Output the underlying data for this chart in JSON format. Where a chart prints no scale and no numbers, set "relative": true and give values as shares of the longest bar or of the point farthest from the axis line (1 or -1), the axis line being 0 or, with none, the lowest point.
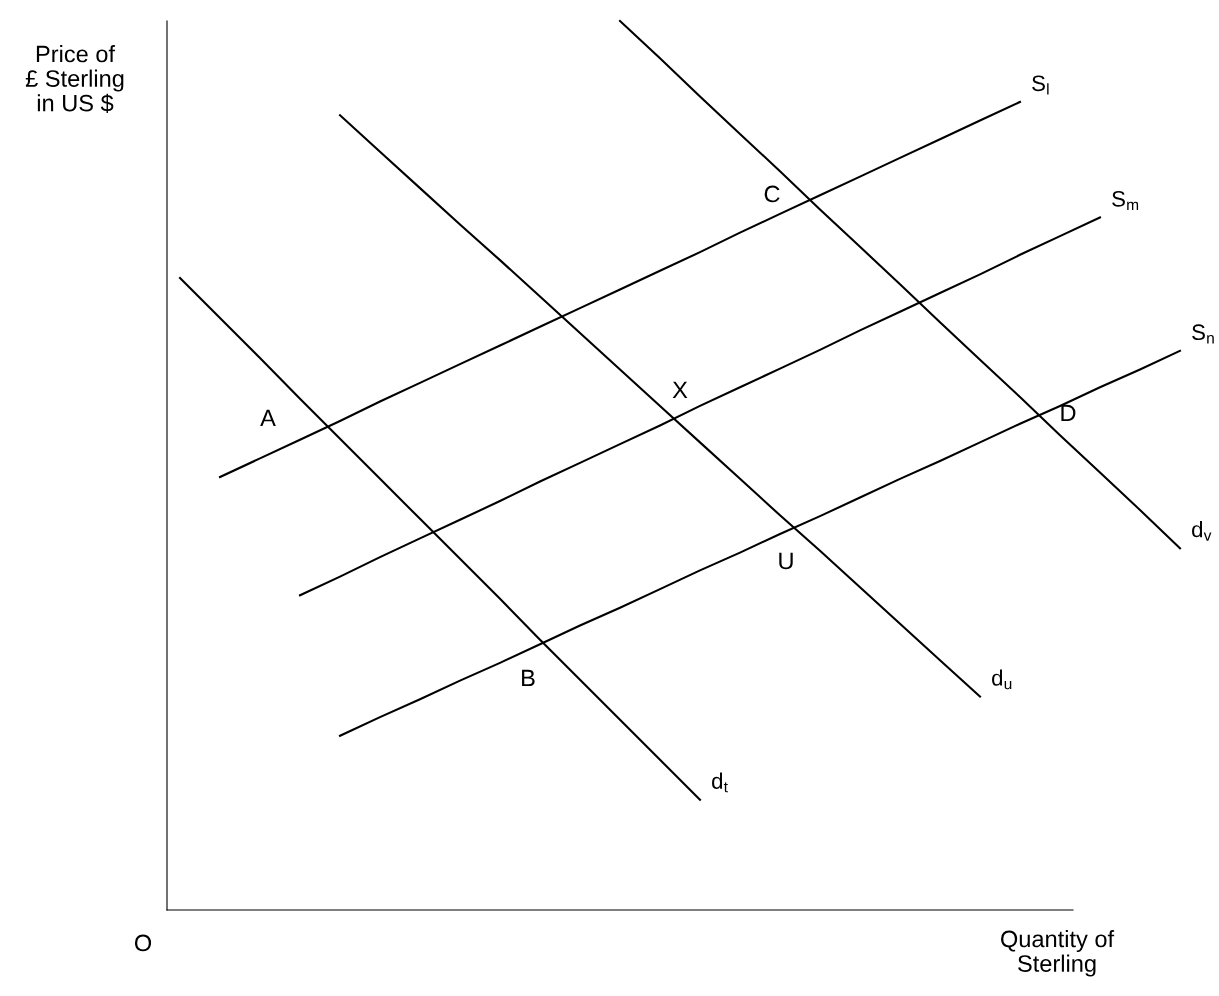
{
  "chart_data": {
    "type": "line",
    "relative": true,
    "xlabel": "Quantity of\nSterling",
    "ylabel": "Price of\n£ Sterling\nin US $",
    "legend": false,
    "marker": "none",
    "line_style": "solid",
    "categories": [
      null,
      null,
      null,
      null,
      null,
      null,
      null,
      null,
      null,
      null,
      null,
      null,
      null,
      null,
      null,
      null,
      null,
      null,
      null,
      null,
      null,
      null,
      null,
      null,
      null,
      null
    ],
    "series": [
      {
        "name": "S$_{l}$",
        "color": "#000000",
        "values": [
          null,
          0.487,
          0.508,
          0.529,
          0.55,
          0.572,
          0.593,
          0.614,
          0.635,
          0.656,
          0.677,
          0.698,
          0.719,
          0.74,
          0.762,
          0.783,
          0.804,
          0.825,
          0.846,
          0.867,
          0.888,
          0.909,
          null,
          null,
          null,
          null
        ]
      },
      {
        "name": "S$_{m}$",
        "color": "#000000",
        "values": [
          null,
          null,
          null,
          0.354,
          0.375,
          0.397,
          0.418,
          0.439,
          0.46,
          0.482,
          0.503,
          0.524,
          0.545,
          0.567,
          0.588,
          0.609,
          0.63,
          0.652,
          0.673,
          0.694,
          0.715,
          0.737,
          0.758,
          0.779,
          null,
          null
        ]
      },
      {
        "name": "S$_{n}$",
        "color": "#000000",
        "values": [
          null,
          null,
          null,
          null,
          0.196,
          0.217,
          0.237,
          0.258,
          0.278,
          0.299,
          0.32,
          0.34,
          0.361,
          0.382,
          0.402,
          0.423,
          0.443,
          0.464,
          0.485,
          0.505,
          0.526,
          0.547,
          0.567,
          0.588,
          0.608,
          0.629
        ]
      },
      {
        "name": "d$_{t}$",
        "color": "#000000",
        "values": [
          0.711,
          0.666,
          0.621,
          0.575,
          0.53,
          0.485,
          0.44,
          0.395,
          0.35,
          0.304,
          0.259,
          0.214,
          0.169,
          0.124,
          null,
          null,
          null,
          null,
          null,
          null,
          null,
          null,
          null,
          null,
          null,
          null
        ]
      },
      {
        "name": "d$_{u}$",
        "color": "#000000",
        "values": [
          null,
          null,
          null,
          null,
          0.894,
          0.853,
          0.812,
          0.771,
          0.731,
          0.69,
          0.649,
          0.608,
          0.567,
          0.526,
          0.485,
          0.444,
          0.404,
          0.363,
          0.322,
          0.281,
          0.24,
          null,
          null,
          null,
          null,
          null
        ]
      },
      {
        "name": "d$_{v}$",
        "color": "#000000",
        "values": [
          null,
          null,
          null,
          null,
          null,
          null,
          null,
          null,
          null,
          null,
          null,
          1.0,
          0.958,
          0.915,
          0.873,
          0.831,
          0.788,
          0.746,
          0.704,
          0.661,
          0.619,
          0.577,
          0.534,
          0.492,
          0.45,
          0.407
        ]
      }
    ],
    "annotations": [
      "A",
      "C",
      "X",
      "D",
      "U",
      "B",
      "O"
    ]
  }
}
